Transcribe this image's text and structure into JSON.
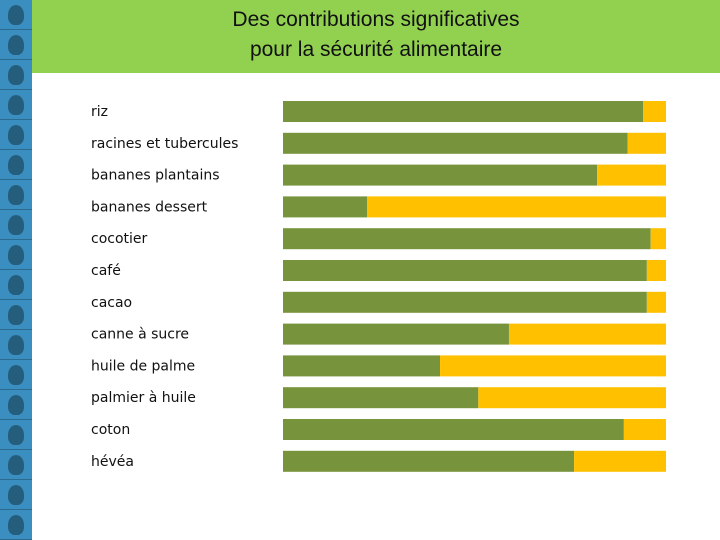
{
  "header": {
    "title_line1": "Des contributions significatives",
    "title_line2": "pour la sécurité alimentaire"
  },
  "colors": {
    "header_bg": "#92d050",
    "series_a": "#77933c",
    "series_b": "#ffc000",
    "left_strip": "#3a8fc0"
  },
  "left_strip": {
    "tiles": [
      "face-icon",
      "face-icon",
      "face-icon",
      "face-icon",
      "face-icon",
      "face-icon",
      "face-icon",
      "face-icon",
      "face-icon",
      "face-icon",
      "face-icon",
      "face-icon",
      "face-icon",
      "face-icon",
      "face-icon",
      "face-icon",
      "face-icon",
      "face-icon"
    ]
  },
  "chart_data": {
    "type": "bar",
    "orientation": "horizontal",
    "stacked": true,
    "percent_stacked": true,
    "categories": [
      "riz",
      "racines et tubercules",
      "bananes plantains",
      "bananes dessert",
      "cocotier",
      "café",
      "cacao",
      "canne à sucre",
      "huile de palme",
      "palmier à huile",
      "coton",
      "hévéa"
    ],
    "series": [
      {
        "values": [
          94,
          90,
          82,
          22,
          96,
          95,
          95,
          59,
          41,
          51,
          89,
          76
        ]
      },
      {
        "values": [
          6,
          10,
          18,
          78,
          4,
          5,
          5,
          41,
          59,
          49,
          11,
          24
        ]
      }
    ],
    "xlim": [
      0,
      100
    ],
    "grid": false,
    "legend": "none"
  }
}
